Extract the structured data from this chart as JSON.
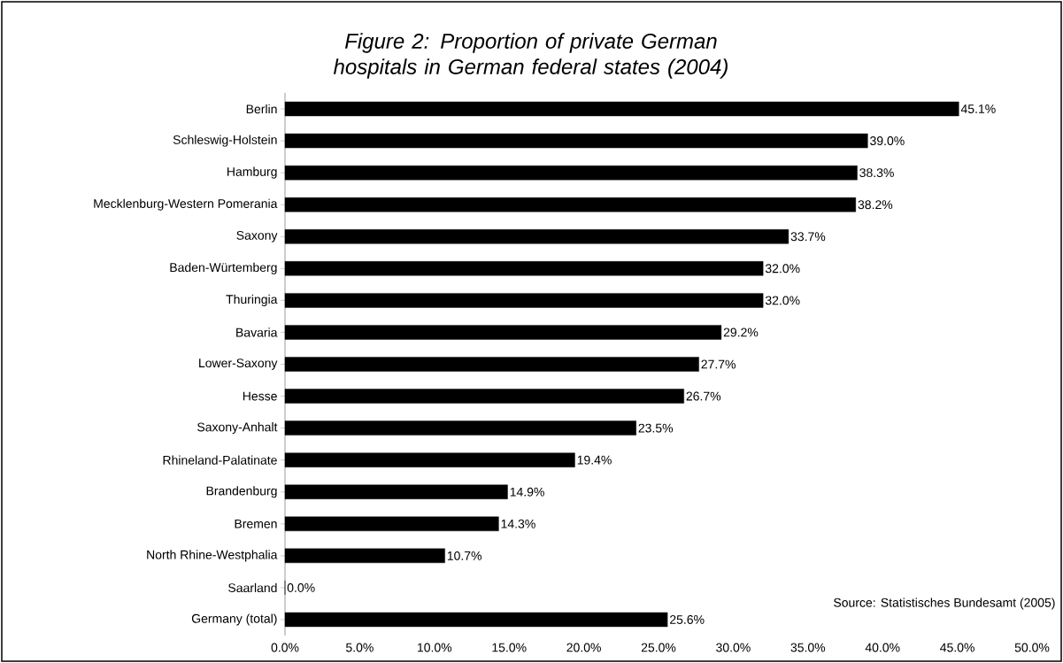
{
  "chart_data": {
    "type": "bar",
    "orientation": "horizontal",
    "title": "Figure 2: Proportion of private German hospitals in German federal states (2004)",
    "categories": [
      "Berlin",
      "Schleswig-Holstein",
      "Hamburg",
      "Mecklenburg-Western Pomerania",
      "Saxony",
      "Baden-Würtemberg",
      "Thuringia",
      "Bavaria",
      "Lower-Saxony",
      "Hesse",
      "Saxony-Anhalt",
      "Rhineland-Palatinate",
      "Brandenburg",
      "Bremen",
      "North Rhine-Westphalia",
      "Saarland",
      "Germany (total)"
    ],
    "values": [
      45.1,
      39.0,
      38.3,
      38.2,
      33.7,
      32.0,
      32.0,
      29.2,
      27.7,
      26.7,
      23.5,
      19.4,
      14.9,
      14.3,
      10.7,
      0.0,
      25.6
    ],
    "value_labels": [
      "45.1%",
      "39.0%",
      "38.3%",
      "38.2%",
      "33.7%",
      "32.0%",
      "32.0%",
      "29.2%",
      "27.7%",
      "26.7%",
      "23.5%",
      "19.4%",
      "14.9%",
      "14.3%",
      "10.7%",
      "0.0%",
      "25.6%"
    ],
    "color": "#000000",
    "xlim": [
      0,
      50
    ],
    "xticks": [
      {
        "value": 0,
        "label": "0.0%"
      },
      {
        "value": 5,
        "label": "5.0%"
      },
      {
        "value": 10,
        "label": "10.0%"
      },
      {
        "value": 15,
        "label": "15.0%"
      },
      {
        "value": 20,
        "label": "20.0%"
      },
      {
        "value": 25,
        "label": "25.0%"
      },
      {
        "value": 30,
        "label": "30.0%"
      },
      {
        "value": 35,
        "label": "35.0%"
      },
      {
        "value": 40,
        "label": "40.0%"
      },
      {
        "value": 45,
        "label": "45.0%"
      },
      {
        "value": 50,
        "label": "50.0%"
      }
    ],
    "annotations": [
      "Source: Statistisches Bundesamt (2005)"
    ],
    "grid": false
  }
}
